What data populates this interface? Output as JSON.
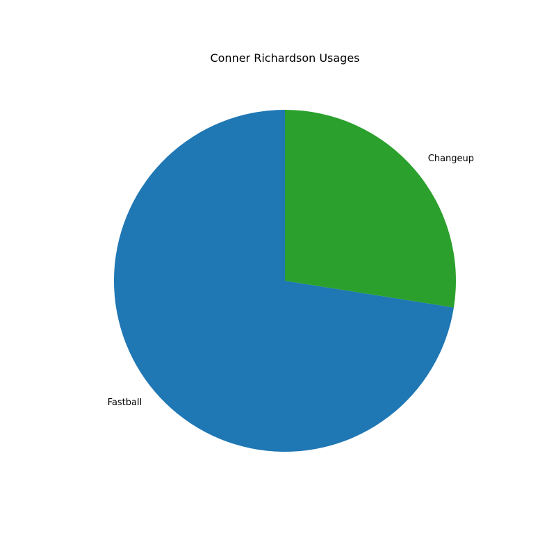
{
  "chart_data": {
    "type": "pie",
    "title": "Conner Richardson Usages",
    "slices": [
      {
        "label": "Fastball",
        "value": 72.5,
        "color": "#1f77b4"
      },
      {
        "label": "Changeup",
        "value": 27.5,
        "color": "#2ca02c"
      }
    ],
    "start_angle_deg": 90,
    "direction": "counterclockwise",
    "legend": "none"
  }
}
